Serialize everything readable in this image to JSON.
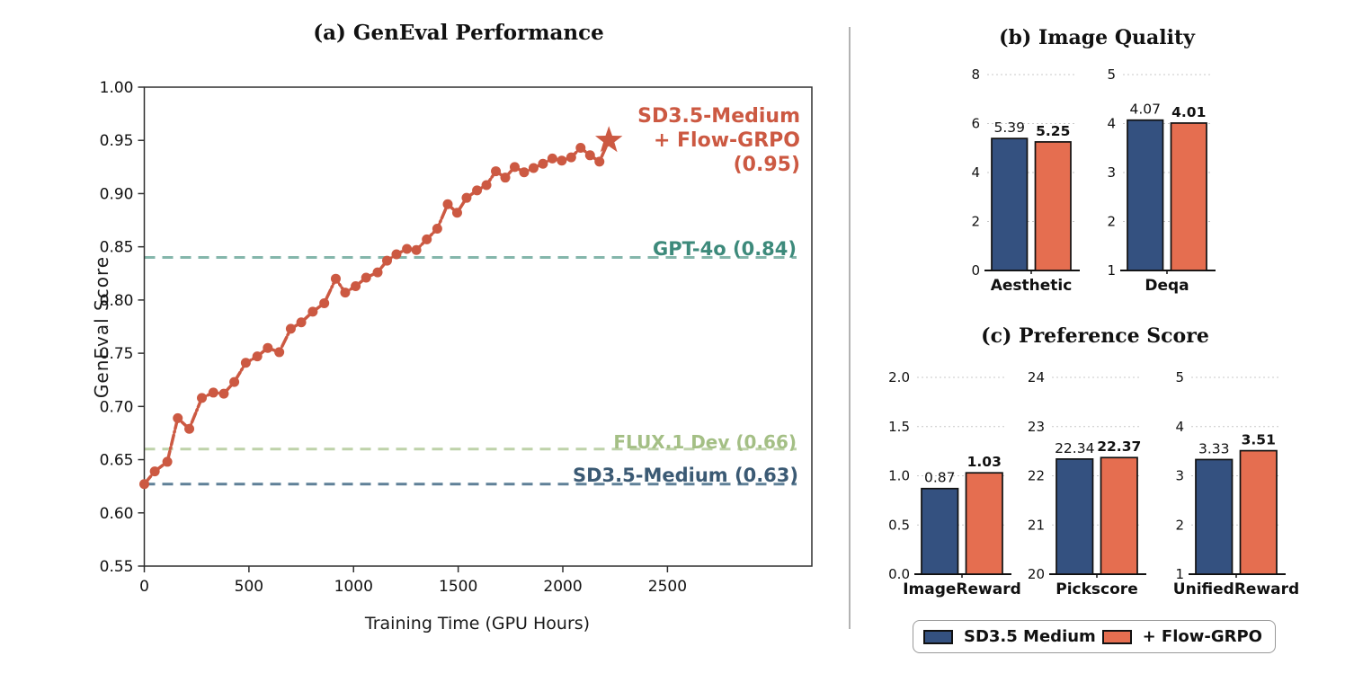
{
  "figure_titles": {
    "panel_a": "(a) GenEval Performance",
    "panel_b": "(b) Image Quality",
    "panel_c": "(c) Preference Score"
  },
  "panel_a": {
    "xlabel": "Training Time (GPU Hours)",
    "ylabel": "GenEval Score",
    "final_annotation_lines": [
      "SD3.5-Medium",
      "+ Flow-GRPO",
      "(0.95)"
    ]
  },
  "legend": {
    "items": [
      {
        "label": "SD3.5 Medium",
        "color": "#345180"
      },
      {
        "label": "+ Flow-GRPO",
        "color": "#e56e50"
      }
    ]
  },
  "colors": {
    "curve": "#cc5942",
    "bar_blue": "#345180",
    "bar_orange": "#e56e50",
    "annotation_orange": "#cc5942",
    "divider": "#b3b3b3",
    "grid": "#c9c9c9",
    "spine": "#2f2f2f",
    "bar_edge": "#111111",
    "tick_text": "#111111"
  },
  "chart_data": [
    {
      "type": "line",
      "title": "(a) GenEval Performance",
      "xlabel": "Training Time (GPU Hours)",
      "ylabel": "GenEval Score",
      "xlim": [
        0,
        3190
      ],
      "ylim": [
        0.55,
        1.0
      ],
      "xticks": [
        0,
        500,
        1000,
        1500,
        2000,
        2500
      ],
      "yticks": [
        0.55,
        0.6,
        0.65,
        0.7,
        0.75,
        0.8,
        0.85,
        0.9,
        0.95,
        1.0
      ],
      "line_color": "#cc5942",
      "x": [
        0,
        50,
        110,
        160,
        215,
        275,
        330,
        380,
        430,
        485,
        540,
        590,
        645,
        700,
        750,
        805,
        860,
        915,
        960,
        1010,
        1060,
        1115,
        1160,
        1205,
        1255,
        1300,
        1350,
        1400,
        1450,
        1495,
        1540,
        1590,
        1635,
        1680,
        1725,
        1770,
        1815,
        1860,
        1905,
        1950,
        1995,
        2040,
        2085,
        2130,
        2175
      ],
      "y": [
        0.627,
        0.639,
        0.648,
        0.689,
        0.679,
        0.708,
        0.713,
        0.712,
        0.723,
        0.741,
        0.747,
        0.755,
        0.751,
        0.773,
        0.779,
        0.789,
        0.797,
        0.82,
        0.807,
        0.813,
        0.821,
        0.826,
        0.837,
        0.843,
        0.848,
        0.847,
        0.857,
        0.867,
        0.89,
        0.882,
        0.896,
        0.903,
        0.908,
        0.921,
        0.915,
        0.925,
        0.92,
        0.924,
        0.928,
        0.933,
        0.931,
        0.934,
        0.943,
        0.936,
        0.93
      ],
      "final_point": {
        "x": 2220,
        "y": 0.95,
        "marker": "star",
        "label": "SD3.5-Medium + Flow-GRPO (0.95)"
      },
      "hlines": [
        {
          "label": "GPT-4o (0.84)",
          "y": 0.84,
          "line_color": "#84b6ab",
          "text_color": "#3d8a7b"
        },
        {
          "label": "FLUX.1 Dev (0.66)",
          "y": 0.66,
          "line_color": "#bed2a9",
          "text_color": "#a4bf85"
        },
        {
          "label": "SD3.5-Medium (0.63)",
          "y": 0.627,
          "line_color": "#5f8097",
          "text_color": "#3b5a74"
        }
      ]
    },
    {
      "type": "bar",
      "title": "(b) Image Quality",
      "series": [
        "SD3.5 Medium",
        "+ Flow-GRPO"
      ],
      "groups": [
        {
          "category": "Aesthetic",
          "ylim": [
            0,
            8
          ],
          "yticks": [
            "0",
            "2",
            "4",
            "6",
            "8"
          ],
          "values": [
            5.39,
            5.25
          ],
          "labels": [
            "5.39",
            "5.25"
          ]
        },
        {
          "category": "Deqa",
          "ylim": [
            1,
            5
          ],
          "yticks": [
            "1",
            "2",
            "3",
            "4",
            "5"
          ],
          "values": [
            4.07,
            4.01
          ],
          "labels": [
            "4.07",
            "4.01"
          ]
        }
      ]
    },
    {
      "type": "bar",
      "title": "(c) Preference Score",
      "series": [
        "SD3.5 Medium",
        "+ Flow-GRPO"
      ],
      "groups": [
        {
          "category": "ImageReward",
          "ylim": [
            0,
            2
          ],
          "yticks": [
            "0.0",
            "0.5",
            "1.0",
            "1.5",
            "2.0"
          ],
          "values": [
            0.87,
            1.03
          ],
          "labels": [
            "0.87",
            "1.03"
          ]
        },
        {
          "category": "Pickscore",
          "ylim": [
            20,
            24
          ],
          "yticks": [
            "20",
            "21",
            "22",
            "23",
            "24"
          ],
          "values": [
            22.34,
            22.37
          ],
          "labels": [
            "22.34",
            "22.37"
          ]
        },
        {
          "category": "UnifiedReward",
          "ylim": [
            1,
            5
          ],
          "yticks": [
            "1",
            "2",
            "3",
            "4",
            "5"
          ],
          "values": [
            3.33,
            3.51
          ],
          "labels": [
            "3.33",
            "3.51"
          ]
        }
      ]
    }
  ]
}
